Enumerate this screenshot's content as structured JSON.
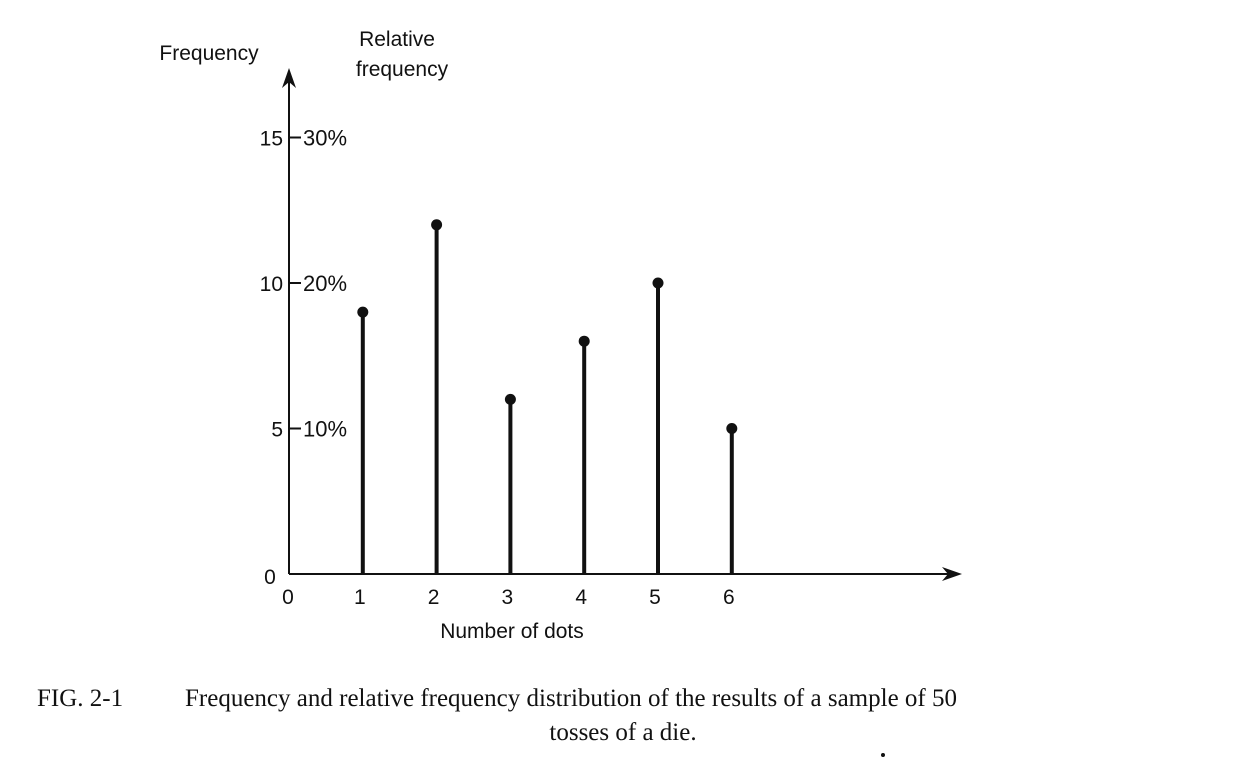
{
  "chart_data": {
    "type": "stem",
    "title": "",
    "xlabel": "Number of dots",
    "ylabel_left": "Frequency",
    "ylabel_right_line1": "Relative",
    "ylabel_right_line2": "frequency",
    "x_origin_label": "0",
    "y_origin_label": "0",
    "categories": [
      "1",
      "2",
      "3",
      "4",
      "5",
      "6"
    ],
    "values": [
      9,
      12,
      6,
      8,
      10,
      5
    ],
    "ylim": [
      0,
      17
    ],
    "xlim": [
      0,
      9
    ],
    "y_ticks": [
      {
        "value": 5,
        "freq_label": "5",
        "rel_label": "10%"
      },
      {
        "value": 10,
        "freq_label": "10",
        "rel_label": "20%"
      },
      {
        "value": 15,
        "freq_label": "15",
        "rel_label": "30%"
      }
    ],
    "grid": false,
    "legend": "none",
    "color": "#111111"
  },
  "caption": {
    "label": "FIG. 2-1",
    "line1": "Frequency and relative frequency distribution of the results of a sample of 50",
    "line2": "tosses of a die."
  }
}
